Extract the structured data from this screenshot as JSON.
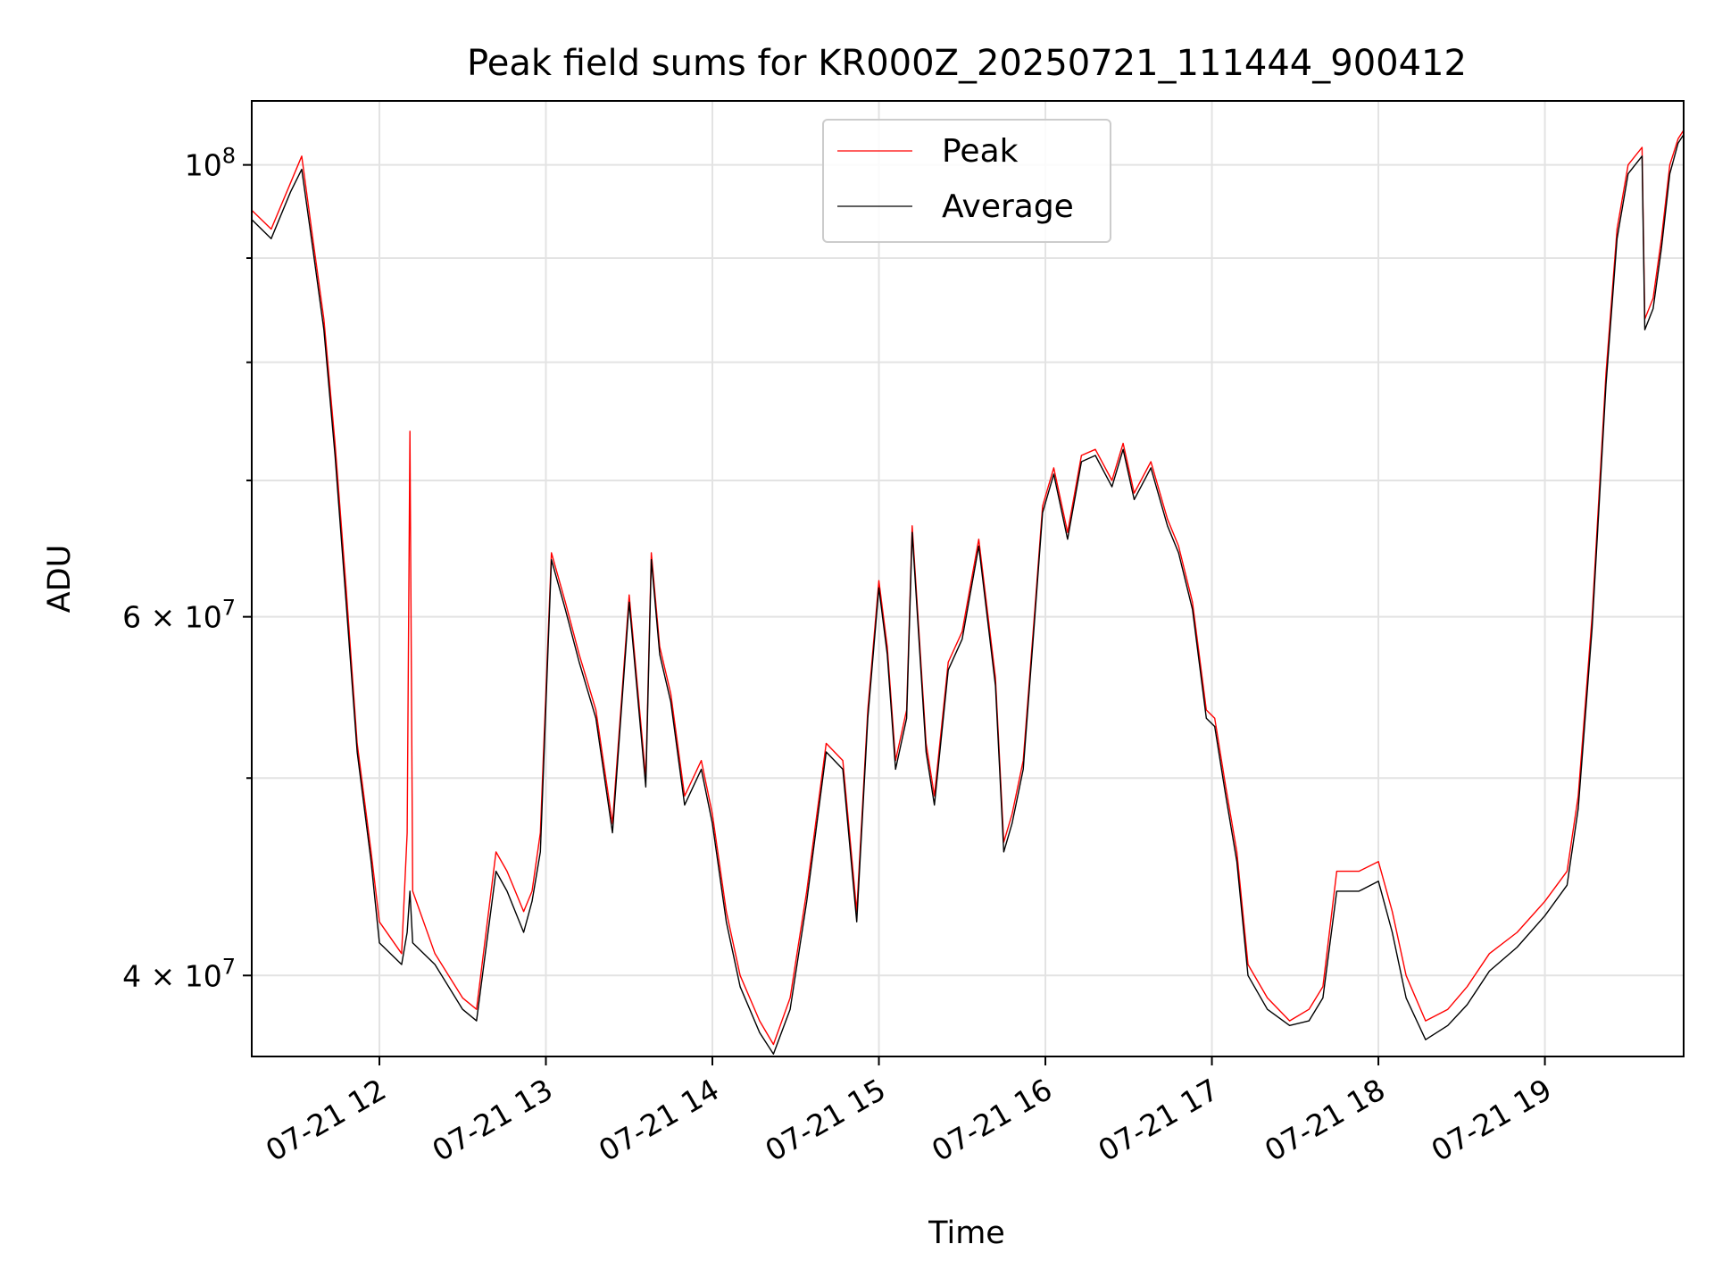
{
  "chart_data": {
    "type": "line",
    "title": "Peak field sums for KR000Z_20250721_111444_900412",
    "xlabel": "Time",
    "ylabel": "ADU",
    "yscale": "log",
    "grid": true,
    "legend_position": "upper-center",
    "xlim": [
      "2025-07-21 11:14",
      "2025-07-21 19:50"
    ],
    "ylim": [
      36500000,
      107500000
    ],
    "x_ticks": [
      {
        "value": "2025-07-21 12:00",
        "label": "07-21 12"
      },
      {
        "value": "2025-07-21 13:00",
        "label": "07-21 13"
      },
      {
        "value": "2025-07-21 14:00",
        "label": "07-21 14"
      },
      {
        "value": "2025-07-21 15:00",
        "label": "07-21 15"
      },
      {
        "value": "2025-07-21 16:00",
        "label": "07-21 16"
      },
      {
        "value": "2025-07-21 17:00",
        "label": "07-21 17"
      },
      {
        "value": "2025-07-21 18:00",
        "label": "07-21 18"
      },
      {
        "value": "2025-07-21 19:00",
        "label": "07-21 19"
      }
    ],
    "y_major_ticks": [
      {
        "value": 40000000,
        "mantissa": "4",
        "times": "×",
        "base": "10",
        "exponent": "7"
      },
      {
        "value": 60000000,
        "mantissa": "6",
        "times": "×",
        "base": "10",
        "exponent": "7"
      },
      {
        "value": 100000000,
        "mantissa": "",
        "times": "",
        "base": "10",
        "exponent": "8"
      }
    ],
    "y_minor_ticks": [
      50000000,
      70000000,
      80000000,
      90000000
    ],
    "series": [
      {
        "name": "Peak",
        "color": "#ff0000",
        "x": [
          "2025-07-21 11:14",
          "2025-07-21 11:21",
          "2025-07-21 11:28",
          "2025-07-21 11:32",
          "2025-07-21 11:36",
          "2025-07-21 11:40",
          "2025-07-21 11:44",
          "2025-07-21 11:48",
          "2025-07-21 11:52",
          "2025-07-21 11:57",
          "2025-07-21 12:00",
          "2025-07-21 12:08",
          "2025-07-21 12:10",
          "2025-07-21 12:11",
          "2025-07-21 12:12",
          "2025-07-21 12:20",
          "2025-07-21 12:30",
          "2025-07-21 12:35",
          "2025-07-21 12:42",
          "2025-07-21 12:46",
          "2025-07-21 12:52",
          "2025-07-21 12:55",
          "2025-07-21 12:58",
          "2025-07-21 13:02",
          "2025-07-21 13:07",
          "2025-07-21 13:12",
          "2025-07-21 13:18",
          "2025-07-21 13:24",
          "2025-07-21 13:30",
          "2025-07-21 13:36",
          "2025-07-21 13:38",
          "2025-07-21 13:41",
          "2025-07-21 13:45",
          "2025-07-21 13:50",
          "2025-07-21 13:56",
          "2025-07-21 14:00",
          "2025-07-21 14:05",
          "2025-07-21 14:10",
          "2025-07-21 14:17",
          "2025-07-21 14:22",
          "2025-07-21 14:28",
          "2025-07-21 14:34",
          "2025-07-21 14:41",
          "2025-07-21 14:47",
          "2025-07-21 14:52",
          "2025-07-21 14:56",
          "2025-07-21 15:00",
          "2025-07-21 15:03",
          "2025-07-21 15:06",
          "2025-07-21 15:10",
          "2025-07-21 15:12",
          "2025-07-21 15:17",
          "2025-07-21 15:20",
          "2025-07-21 15:25",
          "2025-07-21 15:30",
          "2025-07-21 15:36",
          "2025-07-21 15:42",
          "2025-07-21 15:45",
          "2025-07-21 15:48",
          "2025-07-21 15:52",
          "2025-07-21 15:56",
          "2025-07-21 15:59",
          "2025-07-21 16:03",
          "2025-07-21 16:08",
          "2025-07-21 16:13",
          "2025-07-21 16:18",
          "2025-07-21 16:24",
          "2025-07-21 16:28",
          "2025-07-21 16:32",
          "2025-07-21 16:38",
          "2025-07-21 16:44",
          "2025-07-21 16:48",
          "2025-07-21 16:53",
          "2025-07-21 16:58",
          "2025-07-21 17:01",
          "2025-07-21 17:05",
          "2025-07-21 17:09",
          "2025-07-21 17:13",
          "2025-07-21 17:20",
          "2025-07-21 17:28",
          "2025-07-21 17:35",
          "2025-07-21 17:40",
          "2025-07-21 17:45",
          "2025-07-21 17:53",
          "2025-07-21 18:00",
          "2025-07-21 18:05",
          "2025-07-21 18:10",
          "2025-07-21 18:17",
          "2025-07-21 18:25",
          "2025-07-21 18:32",
          "2025-07-21 18:40",
          "2025-07-21 18:50",
          "2025-07-21 19:00",
          "2025-07-21 19:08",
          "2025-07-21 19:12",
          "2025-07-21 19:17",
          "2025-07-21 19:22",
          "2025-07-21 19:26",
          "2025-07-21 19:30",
          "2025-07-21 19:35",
          "2025-07-21 19:36",
          "2025-07-21 19:39",
          "2025-07-21 19:42",
          "2025-07-21 19:45",
          "2025-07-21 19:48",
          "2025-07-21 19:50"
        ],
        "y": [
          95000000,
          93000000,
          98000000,
          101000000,
          92000000,
          84000000,
          73000000,
          62000000,
          52000000,
          46000000,
          42500000,
          41000000,
          47000000,
          74000000,
          44000000,
          41000000,
          39000000,
          38500000,
          46000000,
          45000000,
          43000000,
          44000000,
          47000000,
          64500000,
          61000000,
          57500000,
          54000000,
          47500000,
          61500000,
          50000000,
          64500000,
          58000000,
          55000000,
          49000000,
          51000000,
          48000000,
          43000000,
          40000000,
          38000000,
          37000000,
          39000000,
          44000000,
          52000000,
          51000000,
          43000000,
          54000000,
          62500000,
          58000000,
          51000000,
          54000000,
          66500000,
          52000000,
          49000000,
          57000000,
          59000000,
          65500000,
          56000000,
          46500000,
          48000000,
          51000000,
          60000000,
          68000000,
          71000000,
          66000000,
          72000000,
          72500000,
          70000000,
          73000000,
          69000000,
          71500000,
          67000000,
          65000000,
          61000000,
          54000000,
          53500000,
          49500000,
          46000000,
          40500000,
          39000000,
          38000000,
          38500000,
          39500000,
          45000000,
          45000000,
          45500000,
          43000000,
          40000000,
          38000000,
          38500000,
          39500000,
          41000000,
          42000000,
          43500000,
          45000000,
          49000000,
          60000000,
          79000000,
          93000000,
          100000000,
          102000000,
          84000000,
          86000000,
          92000000,
          100000000,
          103000000,
          104000000
        ]
      },
      {
        "name": "Average",
        "color": "#000000",
        "x": [
          "2025-07-21 11:14",
          "2025-07-21 11:21",
          "2025-07-21 11:28",
          "2025-07-21 11:32",
          "2025-07-21 11:36",
          "2025-07-21 11:40",
          "2025-07-21 11:44",
          "2025-07-21 11:48",
          "2025-07-21 11:52",
          "2025-07-21 11:57",
          "2025-07-21 12:00",
          "2025-07-21 12:08",
          "2025-07-21 12:10",
          "2025-07-21 12:11",
          "2025-07-21 12:12",
          "2025-07-21 12:20",
          "2025-07-21 12:30",
          "2025-07-21 12:35",
          "2025-07-21 12:42",
          "2025-07-21 12:46",
          "2025-07-21 12:52",
          "2025-07-21 12:55",
          "2025-07-21 12:58",
          "2025-07-21 13:02",
          "2025-07-21 13:07",
          "2025-07-21 13:12",
          "2025-07-21 13:18",
          "2025-07-21 13:24",
          "2025-07-21 13:30",
          "2025-07-21 13:36",
          "2025-07-21 13:38",
          "2025-07-21 13:41",
          "2025-07-21 13:45",
          "2025-07-21 13:50",
          "2025-07-21 13:56",
          "2025-07-21 14:00",
          "2025-07-21 14:05",
          "2025-07-21 14:10",
          "2025-07-21 14:17",
          "2025-07-21 14:22",
          "2025-07-21 14:28",
          "2025-07-21 14:34",
          "2025-07-21 14:41",
          "2025-07-21 14:47",
          "2025-07-21 14:52",
          "2025-07-21 14:56",
          "2025-07-21 15:00",
          "2025-07-21 15:03",
          "2025-07-21 15:06",
          "2025-07-21 15:10",
          "2025-07-21 15:12",
          "2025-07-21 15:17",
          "2025-07-21 15:20",
          "2025-07-21 15:25",
          "2025-07-21 15:30",
          "2025-07-21 15:36",
          "2025-07-21 15:42",
          "2025-07-21 15:45",
          "2025-07-21 15:48",
          "2025-07-21 15:52",
          "2025-07-21 15:56",
          "2025-07-21 15:59",
          "2025-07-21 16:03",
          "2025-07-21 16:08",
          "2025-07-21 16:13",
          "2025-07-21 16:18",
          "2025-07-21 16:24",
          "2025-07-21 16:28",
          "2025-07-21 16:32",
          "2025-07-21 16:38",
          "2025-07-21 16:44",
          "2025-07-21 16:48",
          "2025-07-21 16:53",
          "2025-07-21 16:58",
          "2025-07-21 17:01",
          "2025-07-21 17:05",
          "2025-07-21 17:09",
          "2025-07-21 17:13",
          "2025-07-21 17:20",
          "2025-07-21 17:28",
          "2025-07-21 17:35",
          "2025-07-21 17:40",
          "2025-07-21 17:45",
          "2025-07-21 17:53",
          "2025-07-21 18:00",
          "2025-07-21 18:05",
          "2025-07-21 18:10",
          "2025-07-21 18:17",
          "2025-07-21 18:25",
          "2025-07-21 18:32",
          "2025-07-21 18:40",
          "2025-07-21 18:50",
          "2025-07-21 19:00",
          "2025-07-21 19:08",
          "2025-07-21 19:12",
          "2025-07-21 19:17",
          "2025-07-21 19:22",
          "2025-07-21 19:26",
          "2025-07-21 19:30",
          "2025-07-21 19:35",
          "2025-07-21 19:36",
          "2025-07-21 19:39",
          "2025-07-21 19:42",
          "2025-07-21 19:45",
          "2025-07-21 19:48",
          "2025-07-21 19:50"
        ],
        "y": [
          94000000,
          92000000,
          97000000,
          99500000,
          91000000,
          83000000,
          72000000,
          61000000,
          51500000,
          45500000,
          41500000,
          40500000,
          42000000,
          44000000,
          41500000,
          40500000,
          38500000,
          38000000,
          45000000,
          44000000,
          42000000,
          43500000,
          46000000,
          64000000,
          60500000,
          57000000,
          53500000,
          47000000,
          61000000,
          49500000,
          64000000,
          57500000,
          54500000,
          48500000,
          50500000,
          47500000,
          42500000,
          39500000,
          37500000,
          36600000,
          38500000,
          43500000,
          51500000,
          50500000,
          42500000,
          53500000,
          62000000,
          57500000,
          50500000,
          53500000,
          66000000,
          51500000,
          48500000,
          56500000,
          58500000,
          65000000,
          55500000,
          46000000,
          47500000,
          50500000,
          59500000,
          67500000,
          70500000,
          65500000,
          71500000,
          72000000,
          69500000,
          72500000,
          68500000,
          71000000,
          66500000,
          64500000,
          60500000,
          53500000,
          53000000,
          49000000,
          45500000,
          40000000,
          38500000,
          37800000,
          38000000,
          39000000,
          44000000,
          44000000,
          44500000,
          42000000,
          39000000,
          37200000,
          37800000,
          38700000,
          40200000,
          41300000,
          42800000,
          44300000,
          48300000,
          59200000,
          78000000,
          92000000,
          99000000,
          101000000,
          83000000,
          85000000,
          91000000,
          99000000,
          102500000,
          103500000
        ]
      }
    ]
  }
}
